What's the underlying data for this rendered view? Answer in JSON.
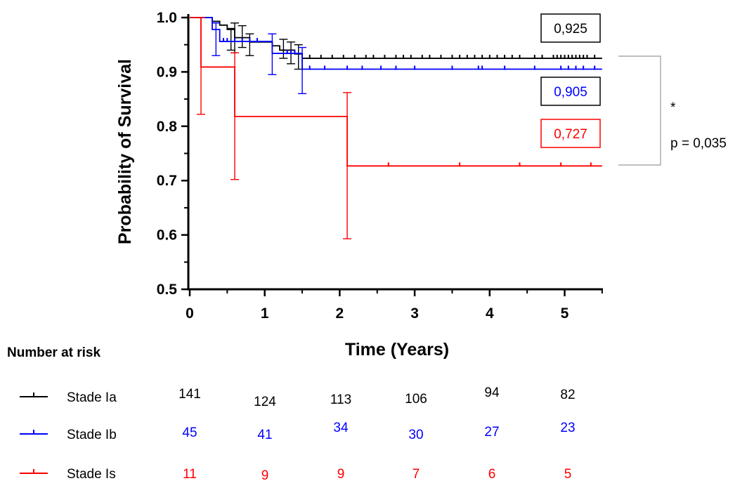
{
  "chart_data": {
    "type": "line",
    "subtype": "kaplan-meier",
    "xlabel": "Time (Years)",
    "ylabel": "Probability of Survival",
    "xlim": [
      0,
      5.5
    ],
    "ylim": [
      0.5,
      1.0
    ],
    "x_ticks": [
      "0",
      "1",
      "2",
      "3",
      "4",
      "5"
    ],
    "y_ticks": [
      "0.5",
      "0.6",
      "0.7",
      "0.8",
      "0.9",
      "1.0"
    ],
    "grid": false,
    "series": [
      {
        "name": "Stade Ia",
        "color": "#000000",
        "steps": [
          [
            0,
            1.0
          ],
          [
            0.3,
            0.993
          ],
          [
            0.4,
            0.986
          ],
          [
            0.5,
            0.978
          ],
          [
            0.6,
            0.963
          ],
          [
            0.8,
            0.955
          ],
          [
            1.1,
            0.948
          ],
          [
            1.2,
            0.94
          ],
          [
            1.4,
            0.933
          ],
          [
            1.5,
            0.925
          ],
          [
            5.5,
            0.925
          ]
        ],
        "error_bars": [
          [
            0.55,
            0.94,
            0.98
          ],
          [
            0.6,
            0.935,
            0.99
          ],
          [
            0.7,
            0.945,
            0.985
          ],
          [
            0.8,
            0.93,
            0.97
          ],
          [
            1.25,
            0.925,
            0.96
          ],
          [
            1.35,
            0.915,
            0.955
          ],
          [
            1.45,
            0.905,
            0.95
          ]
        ],
        "censored": [
          1.6,
          1.75,
          1.9,
          2.05,
          2.2,
          2.35,
          2.45,
          2.6,
          2.75,
          2.85,
          2.95,
          3.1,
          3.2,
          3.35,
          3.5,
          3.6,
          3.7,
          3.8,
          3.9,
          4.0,
          4.1,
          4.2,
          4.3,
          4.4,
          4.6,
          4.7,
          4.85,
          4.9,
          4.95,
          5.0,
          5.05,
          5.1,
          5.15,
          5.2,
          5.25,
          5.3,
          5.4
        ],
        "end_value": "0,925"
      },
      {
        "name": "Stade Ib",
        "color": "#0000ff",
        "steps": [
          [
            0,
            1.0
          ],
          [
            0.3,
            0.978
          ],
          [
            0.4,
            0.956
          ],
          [
            1.1,
            0.934
          ],
          [
            1.5,
            0.905
          ],
          [
            5.5,
            0.905
          ]
        ],
        "error_bars": [
          [
            0.35,
            0.93,
            0.99
          ],
          [
            1.1,
            0.895,
            0.97
          ],
          [
            1.5,
            0.86,
            0.945
          ]
        ],
        "censored": [
          0.45,
          0.5,
          0.6,
          0.7,
          0.8,
          0.9,
          1.3,
          1.35,
          1.4,
          1.6,
          1.8,
          2.1,
          2.3,
          2.55,
          2.75,
          3.0,
          3.5,
          3.85,
          3.9,
          4.2,
          4.6,
          4.95,
          5.05,
          5.15,
          5.25,
          5.4
        ],
        "end_value": "0,905"
      },
      {
        "name": "Stade Is",
        "color": "#ff0000",
        "steps": [
          [
            0,
            1.0
          ],
          [
            0.15,
            0.909
          ],
          [
            0.6,
            0.818
          ],
          [
            2.1,
            0.727
          ],
          [
            5.5,
            0.727
          ]
        ],
        "error_bars": [
          [
            0.15,
            0.822,
            1.0
          ],
          [
            0.6,
            0.702,
            0.935
          ],
          [
            2.1,
            0.593,
            0.862
          ]
        ],
        "censored": [
          2.65,
          3.6,
          4.4,
          4.95,
          5.35
        ],
        "end_value": "0,727"
      }
    ],
    "annotations": {
      "significance": "*",
      "p_value": "p = 0,035"
    },
    "risk_table": {
      "title": "Number at risk",
      "rows": [
        {
          "label": "Stade Ia",
          "color": "#000000",
          "values": [
            "141",
            "124",
            "113",
            "106",
            "94",
            "82"
          ]
        },
        {
          "label": "Stade Ib",
          "color": "#0000ff",
          "values": [
            "45",
            "41",
            "34",
            "30",
            "27",
            "23"
          ]
        },
        {
          "label": "Stade Is",
          "color": "#ff0000",
          "values": [
            "11",
            "9",
            "9",
            "7",
            "6",
            "5"
          ]
        }
      ]
    }
  }
}
